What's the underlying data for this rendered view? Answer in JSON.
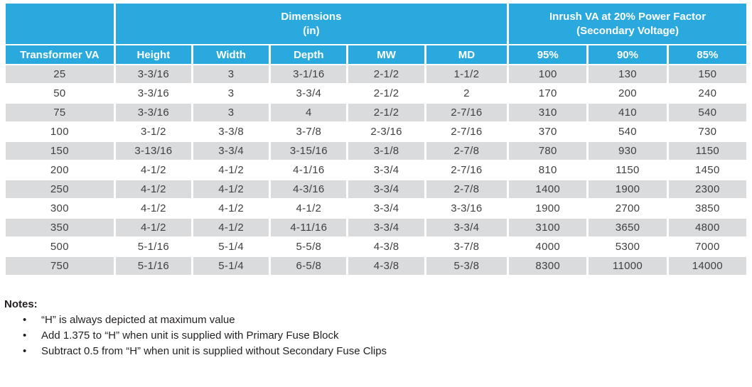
{
  "table": {
    "group_headers": {
      "corner": "",
      "dimensions": {
        "line1": "Dimensions",
        "line2": "(in)"
      },
      "inrush": {
        "line1": "Inrush VA at 20% Power Factor",
        "line2": "(Secondary Voltage)"
      }
    },
    "columns": [
      "Transformer VA",
      "Height",
      "Width",
      "Depth",
      "MW",
      "MD",
      "95%",
      "90%",
      "85%"
    ],
    "rows": [
      [
        "25",
        "3-3/16",
        "3",
        "3-1/16",
        "2-1/2",
        "1-1/2",
        "100",
        "130",
        "150"
      ],
      [
        "50",
        "3-3/16",
        "3",
        "3-3/4",
        "2-1/2",
        "2",
        "170",
        "200",
        "240"
      ],
      [
        "75",
        "3-3/16",
        "3",
        "4",
        "2-1/2",
        "2-7/16",
        "310",
        "410",
        "540"
      ],
      [
        "100",
        "3-1/2",
        "3-3/8",
        "3-7/8",
        "2-3/16",
        "2-7/16",
        "370",
        "540",
        "730"
      ],
      [
        "150",
        "3-13/16",
        "3-3/4",
        "3-15/16",
        "3-1/8",
        "2-7/8",
        "780",
        "930",
        "1150"
      ],
      [
        "200",
        "4-1/2",
        "4-1/2",
        "4-1/16",
        "3-3/4",
        "2-7/16",
        "810",
        "1150",
        "1450"
      ],
      [
        "250",
        "4-1/2",
        "4-1/2",
        "4-3/16",
        "3-3/4",
        "2-7/8",
        "1400",
        "1900",
        "2300"
      ],
      [
        "300",
        "4-1/2",
        "4-1/2",
        "4-1/2",
        "3-3/4",
        "3-3/16",
        "1900",
        "2700",
        "3850"
      ],
      [
        "350",
        "4-1/2",
        "4-1/2",
        "4-11/16",
        "3-3/4",
        "3-3/4",
        "3100",
        "3650",
        "4800"
      ],
      [
        "500",
        "5-1/16",
        "5-1/4",
        "5-5/8",
        "4-3/8",
        "3-7/8",
        "4000",
        "5300",
        "7000"
      ],
      [
        "750",
        "5-1/16",
        "5-1/4",
        "6-5/8",
        "4-3/8",
        "5-3/8",
        "8300",
        "11000",
        "14000"
      ]
    ]
  },
  "notes": {
    "title": "Notes:",
    "items": [
      "“H” is always depicted at maximum value",
      "Add 1.375 to “H” when unit is supplied with Primary Fuse Block",
      "Subtract 0.5 from “H” when unit is supplied without Secondary Fuse Clips"
    ]
  },
  "colors": {
    "header_blue": "#2AA9DF",
    "row_stripe_gray": "#D9DBDD",
    "cell_text": "#414042",
    "header_text": "#FFFFFF",
    "notes_text": "#231F20"
  }
}
